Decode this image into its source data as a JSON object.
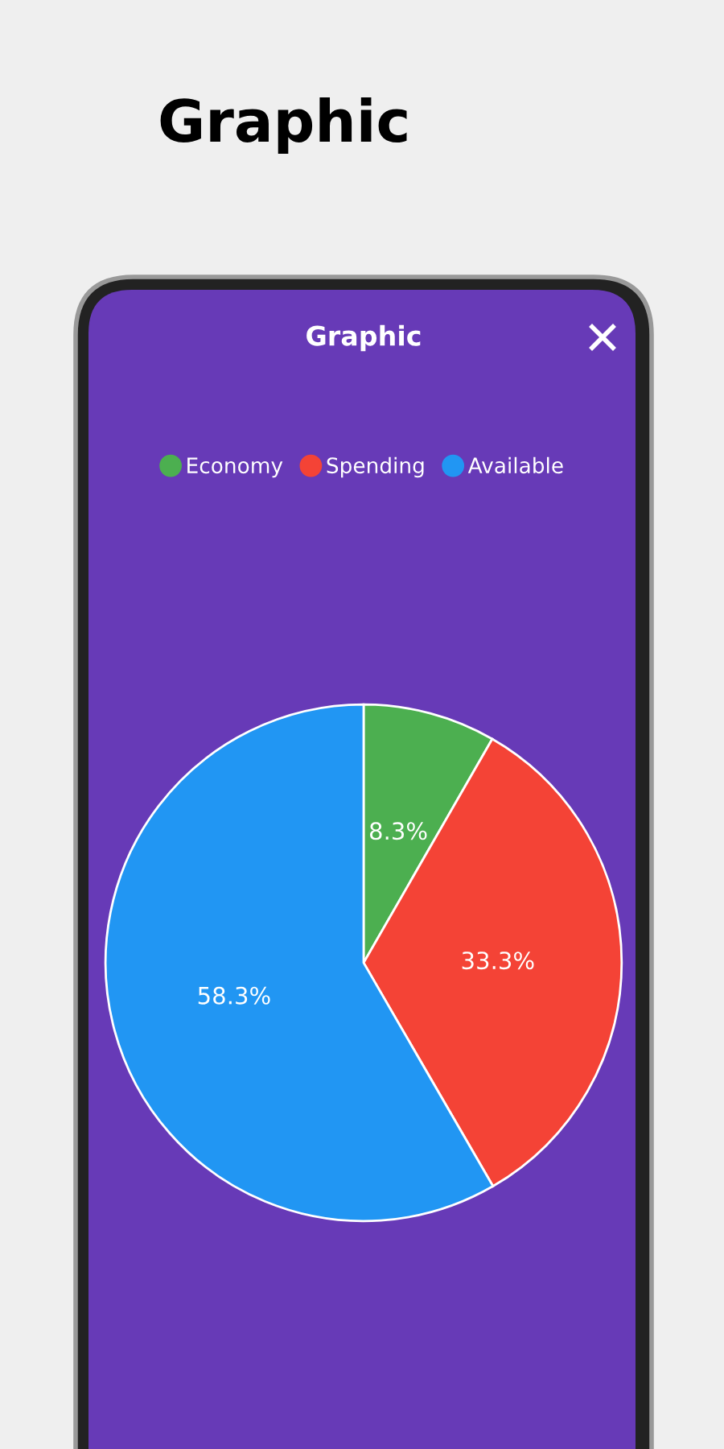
{
  "chart_data": {
    "type": "pie",
    "title": "Graphic",
    "subtitle": "Graphic",
    "categories": [
      "Economy",
      "Spending",
      "Available"
    ],
    "values": [
      8.3,
      33.3,
      58.3
    ],
    "value_labels": [
      "8.3%",
      "33.3%",
      "58.3%"
    ],
    "colors": [
      "#4caf50",
      "#f44336",
      "#2196f3"
    ],
    "legend": "top"
  }
}
